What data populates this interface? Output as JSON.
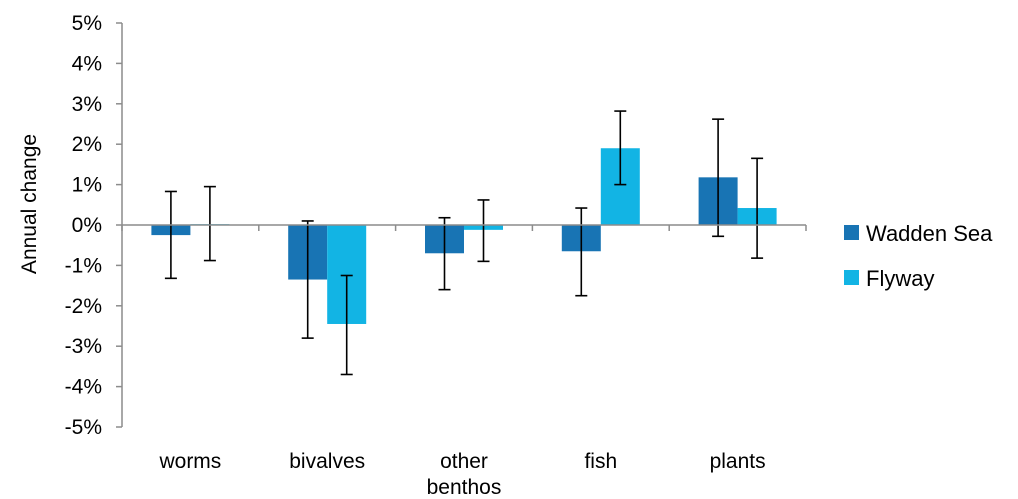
{
  "chart_data": {
    "type": "bar",
    "ylabel": "Annual change",
    "ylim": [
      -5,
      5
    ],
    "y_ticks": [
      5,
      4,
      3,
      2,
      1,
      0,
      -1,
      -2,
      -3,
      -4,
      -5
    ],
    "y_tick_labels": [
      "5%",
      "4%",
      "3%",
      "2%",
      "1%",
      "0%",
      "-1%",
      "-2%",
      "-3%",
      "-4%",
      "-5%"
    ],
    "categories": [
      [
        "worms"
      ],
      [
        "bivalves"
      ],
      [
        "other",
        "benthos"
      ],
      [
        "fish"
      ],
      [
        "plants"
      ]
    ],
    "series": [
      {
        "name": "Wadden Sea",
        "color": "#1874b4",
        "values": [
          -0.25,
          -1.35,
          -0.7,
          -0.65,
          1.18
        ],
        "error_low": [
          -1.32,
          -2.8,
          -1.6,
          -1.75,
          -0.28
        ],
        "error_high": [
          0.83,
          0.1,
          0.18,
          0.42,
          2.62
        ]
      },
      {
        "name": "Flyway",
        "color": "#12b4e4",
        "values": [
          0.02,
          -2.45,
          -0.12,
          1.9,
          0.42
        ],
        "error_low": [
          -0.88,
          -3.7,
          -0.9,
          1.0,
          -0.82
        ],
        "error_high": [
          0.95,
          -1.25,
          0.62,
          2.82,
          1.65
        ]
      }
    ],
    "legend_position": "right",
    "grid": false
  }
}
